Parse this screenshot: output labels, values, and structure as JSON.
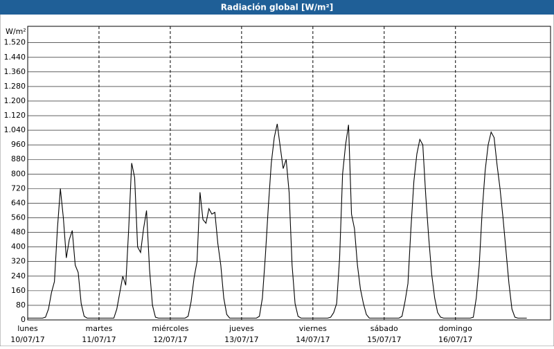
{
  "chart_data": {
    "type": "line",
    "title": "Radiación global [W/m²]",
    "y_label": "W/m²",
    "x": [
      0,
      1,
      2,
      3,
      4,
      5,
      6,
      7,
      8,
      9,
      10,
      11,
      12,
      13,
      14,
      15,
      16,
      17,
      18,
      19,
      20,
      21,
      22,
      23,
      24,
      25,
      26,
      27,
      28,
      29,
      30,
      31,
      32,
      33,
      34,
      35,
      36,
      37,
      38,
      39,
      40,
      41,
      42,
      43,
      44,
      45,
      46,
      47,
      48,
      49,
      50,
      51,
      52,
      53,
      54,
      55,
      56,
      57,
      58,
      59,
      60,
      61,
      62,
      63,
      64,
      65,
      66,
      67,
      68,
      69,
      70,
      71,
      72,
      73,
      74,
      75,
      76,
      77,
      78,
      79,
      80,
      81,
      82,
      83,
      84,
      85,
      86,
      87,
      88,
      89,
      90,
      91,
      92,
      93,
      94,
      95,
      96,
      97,
      98,
      99,
      100,
      101,
      102,
      103,
      104,
      105,
      106,
      107,
      108,
      109,
      110,
      111,
      112,
      113,
      114,
      115,
      116,
      117,
      118,
      119,
      120,
      121,
      122,
      123,
      124,
      125,
      126,
      127,
      128,
      129,
      130,
      131,
      132,
      133,
      134,
      135,
      136,
      137,
      138,
      139,
      140,
      141,
      142,
      143,
      144,
      145,
      146,
      147,
      148,
      149,
      150,
      151,
      152,
      153,
      154,
      155,
      156,
      157,
      158,
      159,
      160,
      161,
      162,
      163,
      164,
      165,
      166,
      167,
      168
    ],
    "series": [
      {
        "color": "#000000",
        "values": [
          10,
          10,
          10,
          10,
          10,
          10,
          15,
          60,
          150,
          210,
          500,
          720,
          560,
          340,
          440,
          490,
          300,
          260,
          90,
          20,
          10,
          10,
          10,
          10,
          10,
          10,
          10,
          10,
          10,
          10,
          60,
          150,
          240,
          190,
          500,
          860,
          780,
          400,
          370,
          500,
          600,
          280,
          80,
          15,
          10,
          10,
          10,
          10,
          10,
          10,
          10,
          10,
          10,
          10,
          20,
          100,
          230,
          320,
          700,
          550,
          530,
          610,
          580,
          590,
          420,
          300,
          120,
          30,
          10,
          10,
          10,
          10,
          10,
          10,
          10,
          10,
          10,
          10,
          20,
          120,
          350,
          620,
          860,
          1000,
          1075,
          950,
          830,
          880,
          700,
          300,
          90,
          20,
          10,
          10,
          10,
          10,
          10,
          10,
          10,
          10,
          10,
          10,
          15,
          40,
          90,
          340,
          800,
          960,
          1070,
          580,
          500,
          300,
          170,
          90,
          30,
          10,
          10,
          10,
          10,
          10,
          10,
          10,
          10,
          10,
          10,
          10,
          20,
          100,
          200,
          500,
          760,
          910,
          990,
          960,
          680,
          450,
          250,
          120,
          40,
          15,
          10,
          10,
          10,
          10,
          10,
          10,
          10,
          10,
          10,
          10,
          15,
          120,
          300,
          600,
          820,
          960,
          1030,
          1000,
          850,
          720,
          560,
          380,
          200,
          60,
          15,
          10,
          10,
          10,
          10
        ]
      }
    ],
    "xlim": [
      0,
      176
    ],
    "xticks": [
      {
        "value": 0,
        "label": "lunes"
      },
      {
        "value": 24,
        "label": "martes"
      },
      {
        "value": 48,
        "label": "miércoles"
      },
      {
        "value": 72,
        "label": "jueves"
      },
      {
        "value": 96,
        "label": "viernes"
      },
      {
        "value": 120,
        "label": "sábado"
      },
      {
        "value": 144,
        "label": "domingo"
      }
    ],
    "xtick_dates": [
      "10/07/17",
      "11/07/17",
      "12/07/17",
      "13/07/17",
      "14/07/17",
      "15/07/17",
      "16/07/17"
    ],
    "ylim": [
      0,
      1610
    ],
    "yticks": [
      0,
      80,
      160,
      240,
      320,
      400,
      480,
      560,
      640,
      720,
      800,
      880,
      960,
      {
        "value": 1040,
        "label": "1.040"
      },
      {
        "value": 1120,
        "label": "1.120"
      },
      {
        "value": 1200,
        "label": "1.200"
      },
      {
        "value": 1280,
        "label": "1.280"
      },
      {
        "value": 1360,
        "label": "1.360"
      },
      {
        "value": 1440,
        "label": "1.440"
      },
      {
        "value": 1520,
        "label": "1.520"
      }
    ],
    "grid": true
  }
}
